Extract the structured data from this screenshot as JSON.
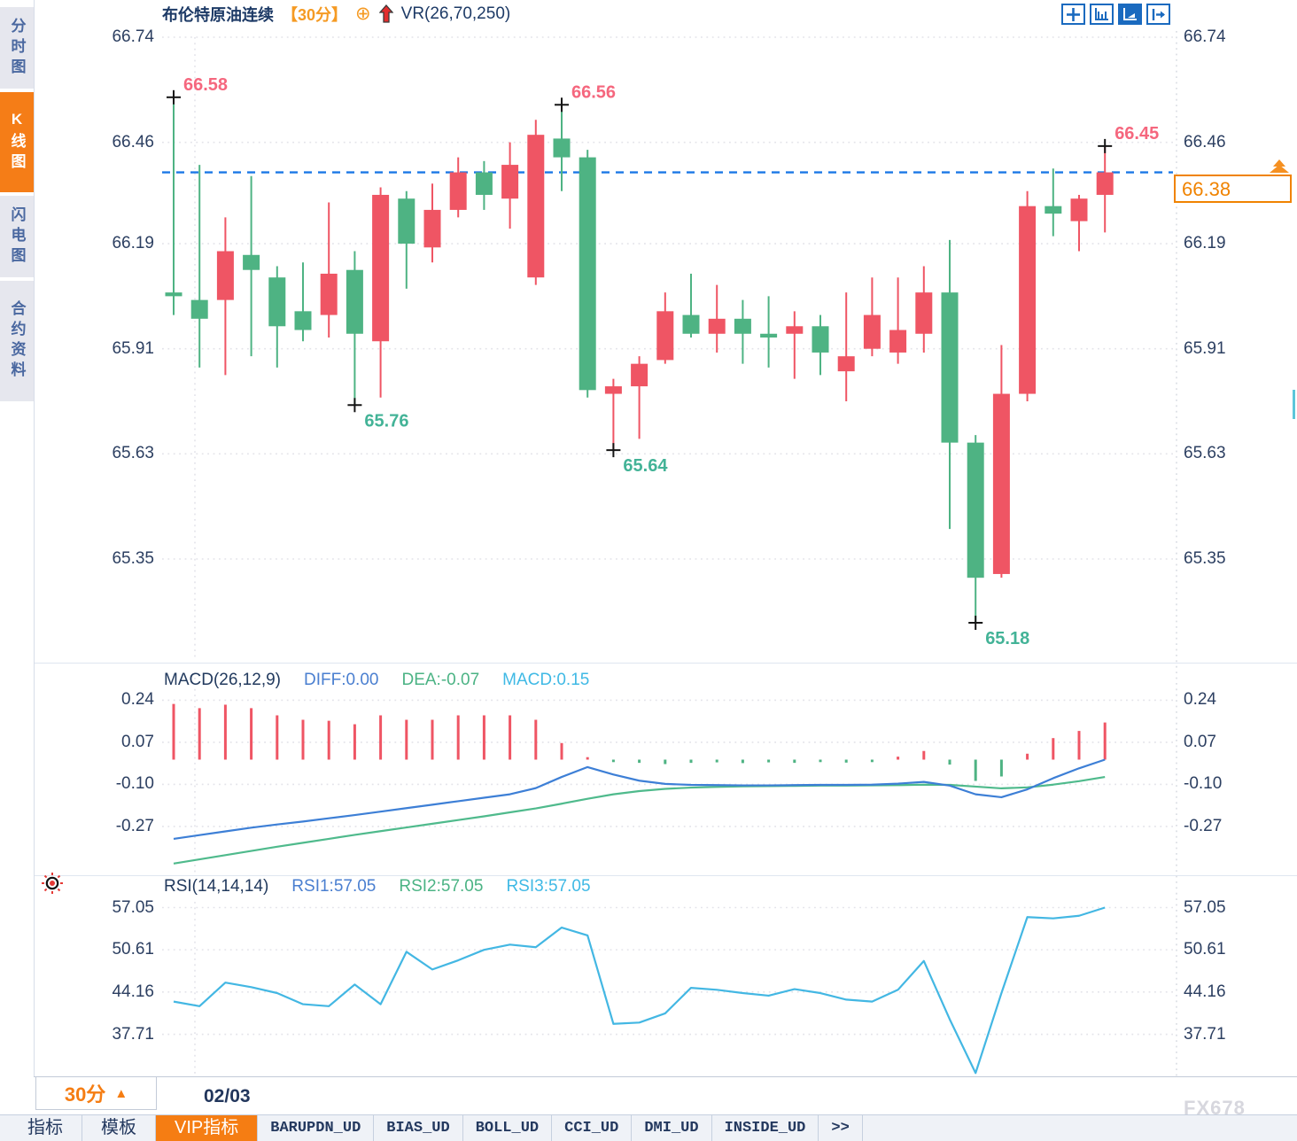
{
  "header": {
    "symbol": "布伦特原油连续",
    "period": "【30分】",
    "plus_icon": "circle-plus",
    "trend_icon": "red-up-arrow",
    "indicator": "VR(26,70,250)"
  },
  "sidebar": {
    "items": [
      {
        "label": "分时图",
        "active": false
      },
      {
        "label": "K线图",
        "active": true
      },
      {
        "label": "闪电图",
        "active": false
      },
      {
        "label": "合约资料",
        "active": false
      }
    ]
  },
  "toolbar_icons": [
    "move-cross-icon",
    "axis-scale-icon",
    "chart-style-icon",
    "exit-right-icon"
  ],
  "price_box": {
    "value": "66.38"
  },
  "bottom": {
    "period_label": "30分",
    "period_arrow": "▲",
    "date_label": "02/03",
    "watermark": "FX678",
    "tabs": [
      {
        "label": "指标",
        "active": false,
        "mono": false
      },
      {
        "label": "模板",
        "active": false,
        "mono": false
      },
      {
        "label": "VIP指标",
        "active": true,
        "mono": false
      },
      {
        "label": "BARUPDN_UD",
        "active": false,
        "mono": true
      },
      {
        "label": "BIAS_UD",
        "active": false,
        "mono": true
      },
      {
        "label": "BOLL_UD",
        "active": false,
        "mono": true
      },
      {
        "label": "CCI_UD",
        "active": false,
        "mono": true
      },
      {
        "label": "DMI_UD",
        "active": false,
        "mono": true
      },
      {
        "label": "INSIDE_UD",
        "active": false,
        "mono": true
      },
      {
        "label": "&gt;&gt;",
        "plain": ">>",
        "active": false,
        "mono": true
      }
    ]
  },
  "colors": {
    "up": "#ef5564",
    "down": "#4eb383",
    "diff_line": "#3d7fd6",
    "dea_line": "#4fba8c",
    "rsi_line": "#43b7e3",
    "dashed_price": "#1b78e6",
    "grid": "#e3e3e9",
    "axis_text": "#2c3f61",
    "ann_high": "#f5677e",
    "ann_low": "#43b397",
    "accent_orange": "#f57d13"
  },
  "chart_data": [
    {
      "type": "candlestick",
      "title": "布伦特原油连续 30分",
      "y_ticks": [
        66.74,
        66.46,
        66.19,
        65.91,
        65.63,
        65.35
      ],
      "ylim": [
        65.35,
        66.74
      ],
      "x_labels": [
        "02/03"
      ],
      "current_price": 66.38,
      "ohlc": [
        [
          66.06,
          66.58,
          66.0,
          66.05
        ],
        [
          66.04,
          66.4,
          65.86,
          65.99
        ],
        [
          66.04,
          66.26,
          65.84,
          66.17
        ],
        [
          66.16,
          66.37,
          65.89,
          66.12
        ],
        [
          66.1,
          66.13,
          65.86,
          65.97
        ],
        [
          66.01,
          66.14,
          65.93,
          65.96
        ],
        [
          66.0,
          66.3,
          65.94,
          66.11
        ],
        [
          66.12,
          66.17,
          65.76,
          65.95
        ],
        [
          65.93,
          66.34,
          65.78,
          66.32
        ],
        [
          66.31,
          66.33,
          66.07,
          66.19
        ],
        [
          66.18,
          66.35,
          66.14,
          66.28
        ],
        [
          66.28,
          66.42,
          66.26,
          66.38
        ],
        [
          66.38,
          66.41,
          66.28,
          66.32
        ],
        [
          66.31,
          66.46,
          66.23,
          66.4
        ],
        [
          66.1,
          66.52,
          66.08,
          66.48
        ],
        [
          66.47,
          66.56,
          66.33,
          66.42
        ],
        [
          66.42,
          66.44,
          65.78,
          65.8
        ],
        [
          65.79,
          65.83,
          65.64,
          65.81
        ],
        [
          65.81,
          65.89,
          65.67,
          65.87
        ],
        [
          65.88,
          66.06,
          65.87,
          66.01
        ],
        [
          66.0,
          66.11,
          65.94,
          65.95
        ],
        [
          65.95,
          66.08,
          65.9,
          65.99
        ],
        [
          65.99,
          66.04,
          65.87,
          65.95
        ],
        [
          65.95,
          66.05,
          65.86,
          65.94
        ],
        [
          65.95,
          66.01,
          65.83,
          65.97
        ],
        [
          65.97,
          66.0,
          65.84,
          65.9
        ],
        [
          65.85,
          66.06,
          65.77,
          65.89
        ],
        [
          65.91,
          66.1,
          65.89,
          66.0
        ],
        [
          65.9,
          66.1,
          65.87,
          65.96
        ],
        [
          65.95,
          66.13,
          65.9,
          66.06
        ],
        [
          66.06,
          66.2,
          65.43,
          65.66
        ],
        [
          65.66,
          65.68,
          65.18,
          65.3
        ],
        [
          65.31,
          65.92,
          65.3,
          65.79
        ],
        [
          65.79,
          66.33,
          65.77,
          66.29
        ],
        [
          66.29,
          66.39,
          66.21,
          66.27
        ],
        [
          66.25,
          66.32,
          66.17,
          66.31
        ],
        [
          66.32,
          66.45,
          66.22,
          66.38
        ]
      ],
      "annotations": [
        {
          "index": 0,
          "side": "high",
          "text": "66.58"
        },
        {
          "index": 15,
          "side": "high",
          "text": "66.56"
        },
        {
          "index": 36,
          "side": "high",
          "text": "66.45"
        },
        {
          "index": 7,
          "side": "low",
          "text": "65.76"
        },
        {
          "index": 17,
          "side": "low",
          "text": "65.64"
        },
        {
          "index": 31,
          "side": "low",
          "text": "65.18"
        }
      ]
    },
    {
      "type": "bar",
      "name": "MACD",
      "title": "MACD(26,12,9)",
      "readouts": {
        "diff": "DIFF:0.00",
        "dea": "DEA:-0.07",
        "macd": "MACD:0.15"
      },
      "y_ticks": [
        0.24,
        0.07,
        -0.1,
        -0.27
      ],
      "histogram": [
        0.225,
        0.208,
        0.222,
        0.208,
        0.179,
        0.161,
        0.157,
        0.143,
        0.179,
        0.161,
        0.161,
        0.179,
        0.179,
        0.179,
        0.161,
        0.067,
        0.01,
        -0.01,
        -0.013,
        -0.018,
        -0.013,
        -0.011,
        -0.014,
        -0.011,
        -0.013,
        -0.01,
        -0.012,
        -0.01,
        0.012,
        0.035,
        -0.02,
        -0.086,
        -0.068,
        0.024,
        0.087,
        0.116,
        0.15
      ],
      "series": [
        {
          "name": "DIFF",
          "values": [
            -0.32,
            -0.305,
            -0.29,
            -0.275,
            -0.262,
            -0.25,
            -0.237,
            -0.224,
            -0.21,
            -0.196,
            -0.182,
            -0.168,
            -0.154,
            -0.14,
            -0.115,
            -0.07,
            -0.03,
            -0.06,
            -0.085,
            -0.098,
            -0.102,
            -0.103,
            -0.104,
            -0.104,
            -0.103,
            -0.102,
            -0.102,
            -0.101,
            -0.097,
            -0.09,
            -0.105,
            -0.14,
            -0.152,
            -0.12,
            -0.075,
            -0.035,
            0.0
          ]
        },
        {
          "name": "DEA",
          "values": [
            -0.42,
            -0.403,
            -0.386,
            -0.369,
            -0.352,
            -0.336,
            -0.32,
            -0.304,
            -0.289,
            -0.274,
            -0.259,
            -0.244,
            -0.229,
            -0.213,
            -0.197,
            -0.178,
            -0.158,
            -0.14,
            -0.127,
            -0.118,
            -0.113,
            -0.11,
            -0.108,
            -0.107,
            -0.106,
            -0.105,
            -0.105,
            -0.104,
            -0.103,
            -0.101,
            -0.102,
            -0.109,
            -0.116,
            -0.112,
            -0.101,
            -0.087,
            -0.07
          ]
        }
      ]
    },
    {
      "type": "line",
      "name": "RSI",
      "title": "RSI(14,14,14)",
      "readouts": {
        "rsi1": "RSI1:57.05",
        "rsi2": "RSI2:57.05",
        "rsi3": "RSI3:57.05"
      },
      "y_ticks": [
        57.05,
        50.61,
        44.16,
        37.71
      ],
      "values": [
        42.7,
        42.0,
        45.6,
        44.9,
        44.0,
        42.3,
        42.0,
        45.3,
        42.3,
        50.3,
        47.6,
        49.0,
        50.6,
        51.4,
        51.0,
        54.0,
        52.8,
        39.3,
        39.5,
        40.9,
        44.8,
        44.5,
        44.0,
        43.6,
        44.6,
        44.0,
        43.0,
        42.7,
        44.5,
        48.9,
        40.0,
        31.8,
        44.0,
        55.6,
        55.4,
        55.8,
        57.05
      ]
    }
  ]
}
